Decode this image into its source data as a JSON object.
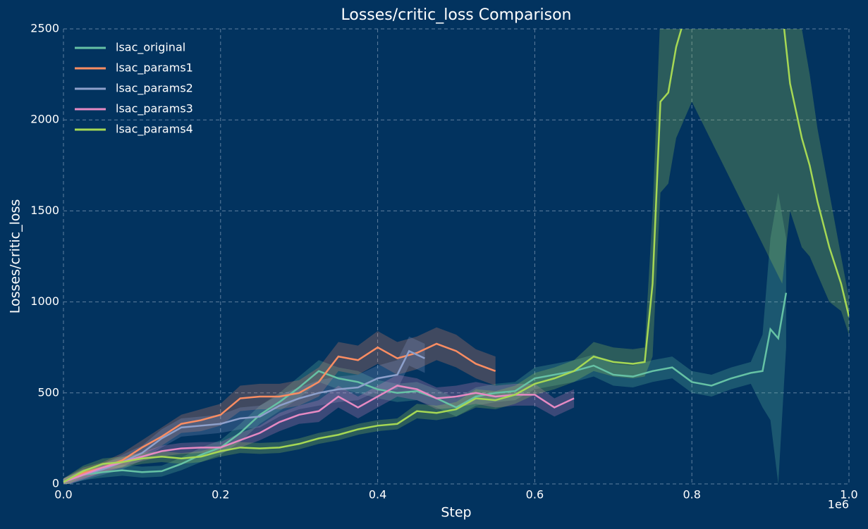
{
  "chart_data": {
    "type": "line",
    "title": "Losses/critic_loss Comparison",
    "x_label": "Step",
    "y_label": "Losses/critic_loss",
    "x_offset_label": "1e6",
    "xlim": [
      0,
      1.0
    ],
    "ylim": [
      0,
      2500
    ],
    "xticks": [
      {
        "value": 0,
        "label": "0.0"
      },
      0.2,
      0.4,
      0.6,
      0.8,
      {
        "value": 1,
        "label": "1.0"
      }
    ],
    "yticks": [
      0,
      500,
      1000,
      1500,
      2000,
      2500
    ],
    "grid": true,
    "legend": "upper left",
    "background": "#02335f",
    "series": [
      {
        "name": "lsac_original",
        "color": "#66c2a5",
        "x": [
          0,
          0.025,
          0.05,
          0.075,
          0.1,
          0.125,
          0.15,
          0.175,
          0.2,
          0.225,
          0.25,
          0.275,
          0.3,
          0.325,
          0.35,
          0.375,
          0.4,
          0.425,
          0.45,
          0.475,
          0.5,
          0.525,
          0.55,
          0.575,
          0.6,
          0.625,
          0.65,
          0.675,
          0.7,
          0.725,
          0.75,
          0.775,
          0.8,
          0.825,
          0.85,
          0.875,
          0.89,
          0.9,
          0.91,
          0.92
        ],
        "values": [
          10,
          50,
          65,
          75,
          65,
          70,
          110,
          160,
          200,
          280,
          380,
          450,
          530,
          620,
          580,
          560,
          520,
          500,
          510,
          470,
          420,
          480,
          500,
          510,
          580,
          600,
          620,
          650,
          600,
          590,
          620,
          640,
          560,
          540,
          580,
          610,
          620,
          850,
          800,
          1050
        ],
        "spread": [
          20,
          30,
          30,
          30,
          30,
          30,
          35,
          40,
          40,
          50,
          50,
          50,
          60,
          60,
          60,
          60,
          50,
          50,
          50,
          50,
          50,
          50,
          50,
          50,
          60,
          60,
          60,
          60,
          60,
          60,
          60,
          60,
          60,
          60,
          60,
          60,
          200,
          500,
          800,
          300
        ]
      },
      {
        "name": "lsac_params1",
        "color": "#fc8d62",
        "x": [
          0,
          0.025,
          0.05,
          0.075,
          0.1,
          0.125,
          0.15,
          0.175,
          0.2,
          0.225,
          0.25,
          0.275,
          0.3,
          0.325,
          0.35,
          0.375,
          0.4,
          0.425,
          0.45,
          0.475,
          0.5,
          0.525,
          0.55
        ],
        "values": [
          10,
          60,
          90,
          130,
          200,
          260,
          330,
          350,
          380,
          470,
          480,
          480,
          500,
          560,
          700,
          680,
          750,
          690,
          720,
          770,
          730,
          660,
          620
        ],
        "spread": [
          20,
          30,
          30,
          40,
          40,
          50,
          50,
          60,
          60,
          70,
          70,
          70,
          70,
          80,
          80,
          80,
          90,
          90,
          90,
          90,
          90,
          80,
          80
        ]
      },
      {
        "name": "lsac_params2",
        "color": "#8da0cb",
        "x": [
          0,
          0.025,
          0.05,
          0.075,
          0.1,
          0.125,
          0.15,
          0.175,
          0.2,
          0.225,
          0.25,
          0.275,
          0.3,
          0.325,
          0.35,
          0.375,
          0.4,
          0.425,
          0.44,
          0.46
        ],
        "values": [
          10,
          50,
          80,
          120,
          170,
          250,
          310,
          320,
          330,
          360,
          370,
          430,
          470,
          500,
          520,
          530,
          580,
          600,
          730,
          690
        ],
        "spread": [
          20,
          30,
          30,
          40,
          40,
          50,
          50,
          50,
          50,
          60,
          60,
          60,
          60,
          70,
          70,
          70,
          70,
          80,
          80,
          80
        ]
      },
      {
        "name": "lsac_params3",
        "color": "#e78ac3",
        "x": [
          0,
          0.025,
          0.05,
          0.075,
          0.1,
          0.125,
          0.15,
          0.175,
          0.2,
          0.225,
          0.25,
          0.275,
          0.3,
          0.325,
          0.35,
          0.375,
          0.4,
          0.425,
          0.45,
          0.475,
          0.5,
          0.525,
          0.55,
          0.575,
          0.6,
          0.625,
          0.65
        ],
        "values": [
          10,
          50,
          90,
          120,
          150,
          180,
          195,
          200,
          200,
          240,
          280,
          340,
          380,
          400,
          480,
          420,
          480,
          540,
          520,
          470,
          480,
          500,
          480,
          490,
          490,
          420,
          470
        ],
        "spread": [
          20,
          25,
          25,
          25,
          25,
          30,
          30,
          30,
          30,
          40,
          40,
          50,
          50,
          60,
          60,
          60,
          60,
          60,
          60,
          60,
          60,
          60,
          60,
          60,
          60,
          50,
          50
        ]
      },
      {
        "name": "lsac_params4",
        "color": "#a6d854",
        "x": [
          0,
          0.025,
          0.05,
          0.075,
          0.1,
          0.125,
          0.15,
          0.175,
          0.2,
          0.225,
          0.25,
          0.275,
          0.3,
          0.325,
          0.35,
          0.375,
          0.4,
          0.425,
          0.45,
          0.475,
          0.5,
          0.525,
          0.55,
          0.575,
          0.6,
          0.625,
          0.65,
          0.675,
          0.7,
          0.725,
          0.74,
          0.75,
          0.76,
          0.77,
          0.78,
          0.8,
          0.915,
          0.925,
          0.94,
          0.95,
          0.96,
          0.975,
          0.99,
          1.0
        ],
        "values": [
          10,
          70,
          110,
          120,
          140,
          150,
          140,
          150,
          180,
          200,
          195,
          200,
          220,
          250,
          270,
          300,
          320,
          330,
          400,
          390,
          410,
          470,
          460,
          490,
          550,
          580,
          620,
          700,
          670,
          660,
          670,
          1100,
          2100,
          2150,
          2400,
          2700,
          2600,
          2200,
          1900,
          1750,
          1550,
          1300,
          1100,
          920
        ],
        "spread": [
          20,
          30,
          30,
          30,
          30,
          30,
          30,
          30,
          30,
          30,
          30,
          30,
          30,
          30,
          30,
          30,
          30,
          30,
          40,
          40,
          40,
          50,
          50,
          50,
          60,
          60,
          60,
          80,
          80,
          80,
          80,
          400,
          500,
          500,
          500,
          600,
          1500,
          700,
          600,
          500,
          400,
          300,
          150,
          100
        ]
      }
    ]
  }
}
